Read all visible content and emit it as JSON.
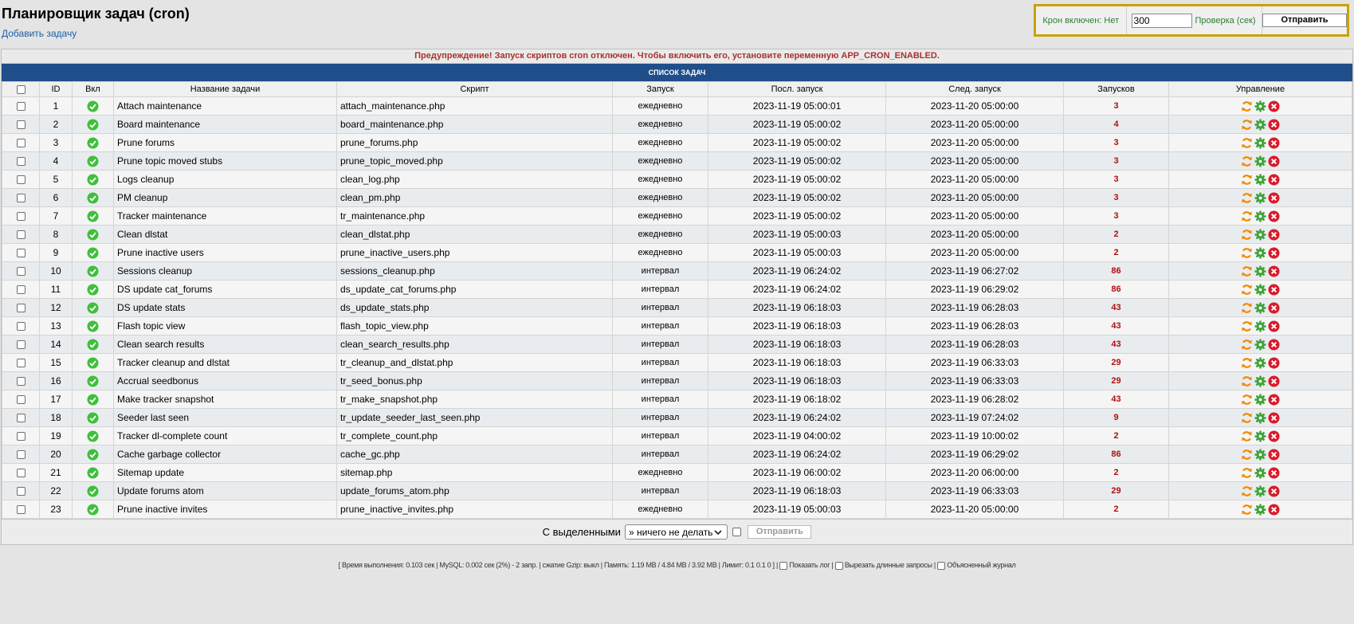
{
  "header": {
    "title": "Планировщик задач (cron)",
    "add_task": "Добавить задачу"
  },
  "cron_panel": {
    "status_label": "Крон включен: Нет",
    "period_value": "300",
    "period_label": "Проверка (сек)",
    "submit_label": "Отправить"
  },
  "warning": "Предупреждение! Запуск скриптов cron отключен. Чтобы включить его, установите переменную APP_CRON_ENABLED.",
  "list_header": "СПИСОК ЗАДАЧ",
  "columns": {
    "id": "ID",
    "enabled": "Вкл",
    "name": "Название задачи",
    "script": "Скрипт",
    "mode": "Запуск",
    "last_run": "Посл. запуск",
    "next_run": "След. запуск",
    "runs": "Запусков",
    "actions": "Управление"
  },
  "tasks": [
    {
      "id": "1",
      "name": "Attach maintenance",
      "script": "attach_maintenance.php",
      "mode": "ежедневно",
      "last": "2023-11-19 05:00:01",
      "next": "2023-11-20 05:00:00",
      "runs": "3"
    },
    {
      "id": "2",
      "name": "Board maintenance",
      "script": "board_maintenance.php",
      "mode": "ежедневно",
      "last": "2023-11-19 05:00:02",
      "next": "2023-11-20 05:00:00",
      "runs": "4"
    },
    {
      "id": "3",
      "name": "Prune forums",
      "script": "prune_forums.php",
      "mode": "ежедневно",
      "last": "2023-11-19 05:00:02",
      "next": "2023-11-20 05:00:00",
      "runs": "3"
    },
    {
      "id": "4",
      "name": "Prune topic moved stubs",
      "script": "prune_topic_moved.php",
      "mode": "ежедневно",
      "last": "2023-11-19 05:00:02",
      "next": "2023-11-20 05:00:00",
      "runs": "3"
    },
    {
      "id": "5",
      "name": "Logs cleanup",
      "script": "clean_log.php",
      "mode": "ежедневно",
      "last": "2023-11-19 05:00:02",
      "next": "2023-11-20 05:00:00",
      "runs": "3"
    },
    {
      "id": "6",
      "name": "PM cleanup",
      "script": "clean_pm.php",
      "mode": "ежедневно",
      "last": "2023-11-19 05:00:02",
      "next": "2023-11-20 05:00:00",
      "runs": "3"
    },
    {
      "id": "7",
      "name": "Tracker maintenance",
      "script": "tr_maintenance.php",
      "mode": "ежедневно",
      "last": "2023-11-19 05:00:02",
      "next": "2023-11-20 05:00:00",
      "runs": "3"
    },
    {
      "id": "8",
      "name": "Clean dlstat",
      "script": "clean_dlstat.php",
      "mode": "ежедневно",
      "last": "2023-11-19 05:00:03",
      "next": "2023-11-20 05:00:00",
      "runs": "2"
    },
    {
      "id": "9",
      "name": "Prune inactive users",
      "script": "prune_inactive_users.php",
      "mode": "ежедневно",
      "last": "2023-11-19 05:00:03",
      "next": "2023-11-20 05:00:00",
      "runs": "2"
    },
    {
      "id": "10",
      "name": "Sessions cleanup",
      "script": "sessions_cleanup.php",
      "mode": "интервал",
      "last": "2023-11-19 06:24:02",
      "next": "2023-11-19 06:27:02",
      "runs": "86"
    },
    {
      "id": "11",
      "name": "DS update cat_forums",
      "script": "ds_update_cat_forums.php",
      "mode": "интервал",
      "last": "2023-11-19 06:24:02",
      "next": "2023-11-19 06:29:02",
      "runs": "86"
    },
    {
      "id": "12",
      "name": "DS update stats",
      "script": "ds_update_stats.php",
      "mode": "интервал",
      "last": "2023-11-19 06:18:03",
      "next": "2023-11-19 06:28:03",
      "runs": "43"
    },
    {
      "id": "13",
      "name": "Flash topic view",
      "script": "flash_topic_view.php",
      "mode": "интервал",
      "last": "2023-11-19 06:18:03",
      "next": "2023-11-19 06:28:03",
      "runs": "43"
    },
    {
      "id": "14",
      "name": "Clean search results",
      "script": "clean_search_results.php",
      "mode": "интервал",
      "last": "2023-11-19 06:18:03",
      "next": "2023-11-19 06:28:03",
      "runs": "43"
    },
    {
      "id": "15",
      "name": "Tracker cleanup and dlstat",
      "script": "tr_cleanup_and_dlstat.php",
      "mode": "интервал",
      "last": "2023-11-19 06:18:03",
      "next": "2023-11-19 06:33:03",
      "runs": "29"
    },
    {
      "id": "16",
      "name": "Accrual seedbonus",
      "script": "tr_seed_bonus.php",
      "mode": "интервал",
      "last": "2023-11-19 06:18:03",
      "next": "2023-11-19 06:33:03",
      "runs": "29"
    },
    {
      "id": "17",
      "name": "Make tracker snapshot",
      "script": "tr_make_snapshot.php",
      "mode": "интервал",
      "last": "2023-11-19 06:18:02",
      "next": "2023-11-19 06:28:02",
      "runs": "43"
    },
    {
      "id": "18",
      "name": "Seeder last seen",
      "script": "tr_update_seeder_last_seen.php",
      "mode": "интервал",
      "last": "2023-11-19 06:24:02",
      "next": "2023-11-19 07:24:02",
      "runs": "9"
    },
    {
      "id": "19",
      "name": "Tracker dl-complete count",
      "script": "tr_complete_count.php",
      "mode": "интервал",
      "last": "2023-11-19 04:00:02",
      "next": "2023-11-19 10:00:02",
      "runs": "2"
    },
    {
      "id": "20",
      "name": "Cache garbage collector",
      "script": "cache_gc.php",
      "mode": "интервал",
      "last": "2023-11-19 06:24:02",
      "next": "2023-11-19 06:29:02",
      "runs": "86"
    },
    {
      "id": "21",
      "name": "Sitemap update",
      "script": "sitemap.php",
      "mode": "ежедневно",
      "last": "2023-11-19 06:00:02",
      "next": "2023-11-20 06:00:00",
      "runs": "2"
    },
    {
      "id": "22",
      "name": "Update forums atom",
      "script": "update_forums_atom.php",
      "mode": "интервал",
      "last": "2023-11-19 06:18:03",
      "next": "2023-11-19 06:33:03",
      "runs": "29"
    },
    {
      "id": "23",
      "name": "Prune inactive invites",
      "script": "prune_inactive_invites.php",
      "mode": "ежедневно",
      "last": "2023-11-19 05:00:03",
      "next": "2023-11-20 05:00:00",
      "runs": "2"
    }
  ],
  "bulk": {
    "label": "С выделенными",
    "selected_option": "» ничего не делать",
    "submit_label": "Отправить"
  },
  "footer": {
    "stats": "[ Время выполнения: 0.103 сек | MySQL: 0.002 сек (2%) - 2 запр. | сжатие Gzip: выкл | Память: 1.19 MB / 4.84 MB / 3.92 MB | Лимит: 0.1 0.1 0 ] |",
    "show_log": "Показать лог",
    "cut_queries": "Вырезать длинные запросы",
    "explained_log": "Объясненный журнал"
  },
  "colors": {
    "accent": "#1f4e8a",
    "warning": "#a8322d",
    "panel_border": "#c6a405",
    "enabled_green": "#3fbf3a",
    "refresh_orange": "#f08a00",
    "delete_red": "#d91b2b"
  },
  "icons": {
    "enabled": "check-circle-icon",
    "run": "refresh-icon",
    "edit": "gear-icon",
    "delete": "delete-icon"
  }
}
